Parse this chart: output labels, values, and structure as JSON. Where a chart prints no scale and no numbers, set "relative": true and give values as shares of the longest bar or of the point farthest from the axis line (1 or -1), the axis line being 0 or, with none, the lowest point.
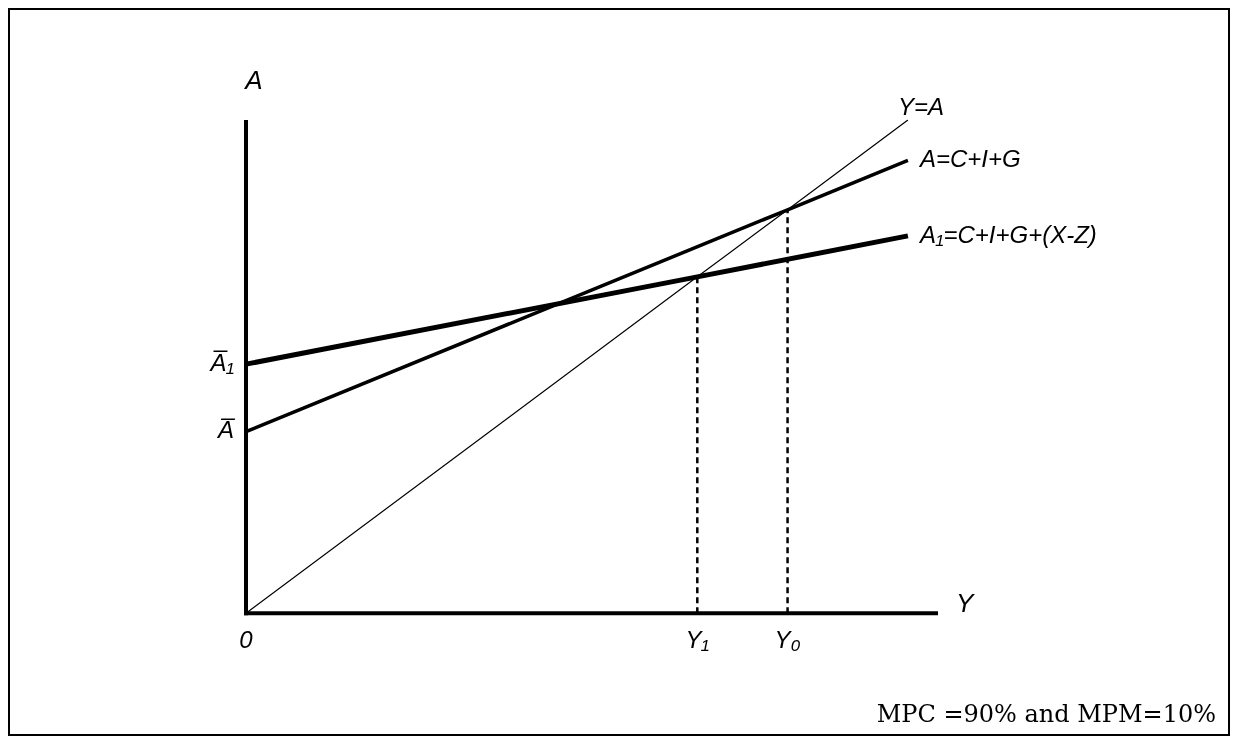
{
  "chart_data": {
    "type": "line",
    "relative": true,
    "xlabel": "Y",
    "ylabel": "A",
    "tick_labels": "x",
    "grid": false,
    "legend": false,
    "marker": "none",
    "categories": [
      "0",
      null,
      null,
      null,
      null,
      null,
      null,
      null,
      null,
      null,
      null,
      null,
      null,
      null,
      null,
      "Y₁",
      null,
      null,
      "Y₀",
      null,
      null,
      null,
      null,
      null
    ],
    "series": [
      {
        "name": "Y=A",
        "color": "#000000",
        "values": [
          0,
          null,
          null,
          null,
          null,
          null,
          null,
          null,
          null,
          null,
          null,
          null,
          null,
          null,
          null,
          0.682,
          null,
          null,
          0.818,
          null,
          null,
          null,
          1,
          null
        ]
      },
      {
        "name": "A=C+I+G",
        "color": "#000000",
        "values": [
          0.368,
          null,
          null,
          null,
          null,
          null,
          null,
          null,
          null,
          null,
          null,
          null,
          null,
          null,
          null,
          null,
          null,
          null,
          0.818,
          null,
          null,
          null,
          0.918,
          null
        ]
      },
      {
        "name": "A₁=C+I+G+(X-Z)",
        "color": "#000000",
        "values": [
          0.505,
          null,
          null,
          null,
          null,
          null,
          null,
          null,
          null,
          null,
          null,
          null,
          null,
          null,
          null,
          0.682,
          null,
          null,
          null,
          null,
          null,
          null,
          0.765,
          null
        ]
      }
    ],
    "ref_lines": [
      {
        "axis": "x",
        "value": "Y₁",
        "line_style": "dashed",
        "color": "#000000"
      },
      {
        "axis": "x",
        "value": "Y₀",
        "line_style": "dashed",
        "color": "#000000"
      }
    ],
    "annotations": [
      {
        "text": "A̅",
        "x": "0",
        "y": 0.368
      },
      {
        "text": "A̅₁",
        "x": "0",
        "y": 0.505
      },
      "MPC =90% and MPM=10%"
    ]
  }
}
